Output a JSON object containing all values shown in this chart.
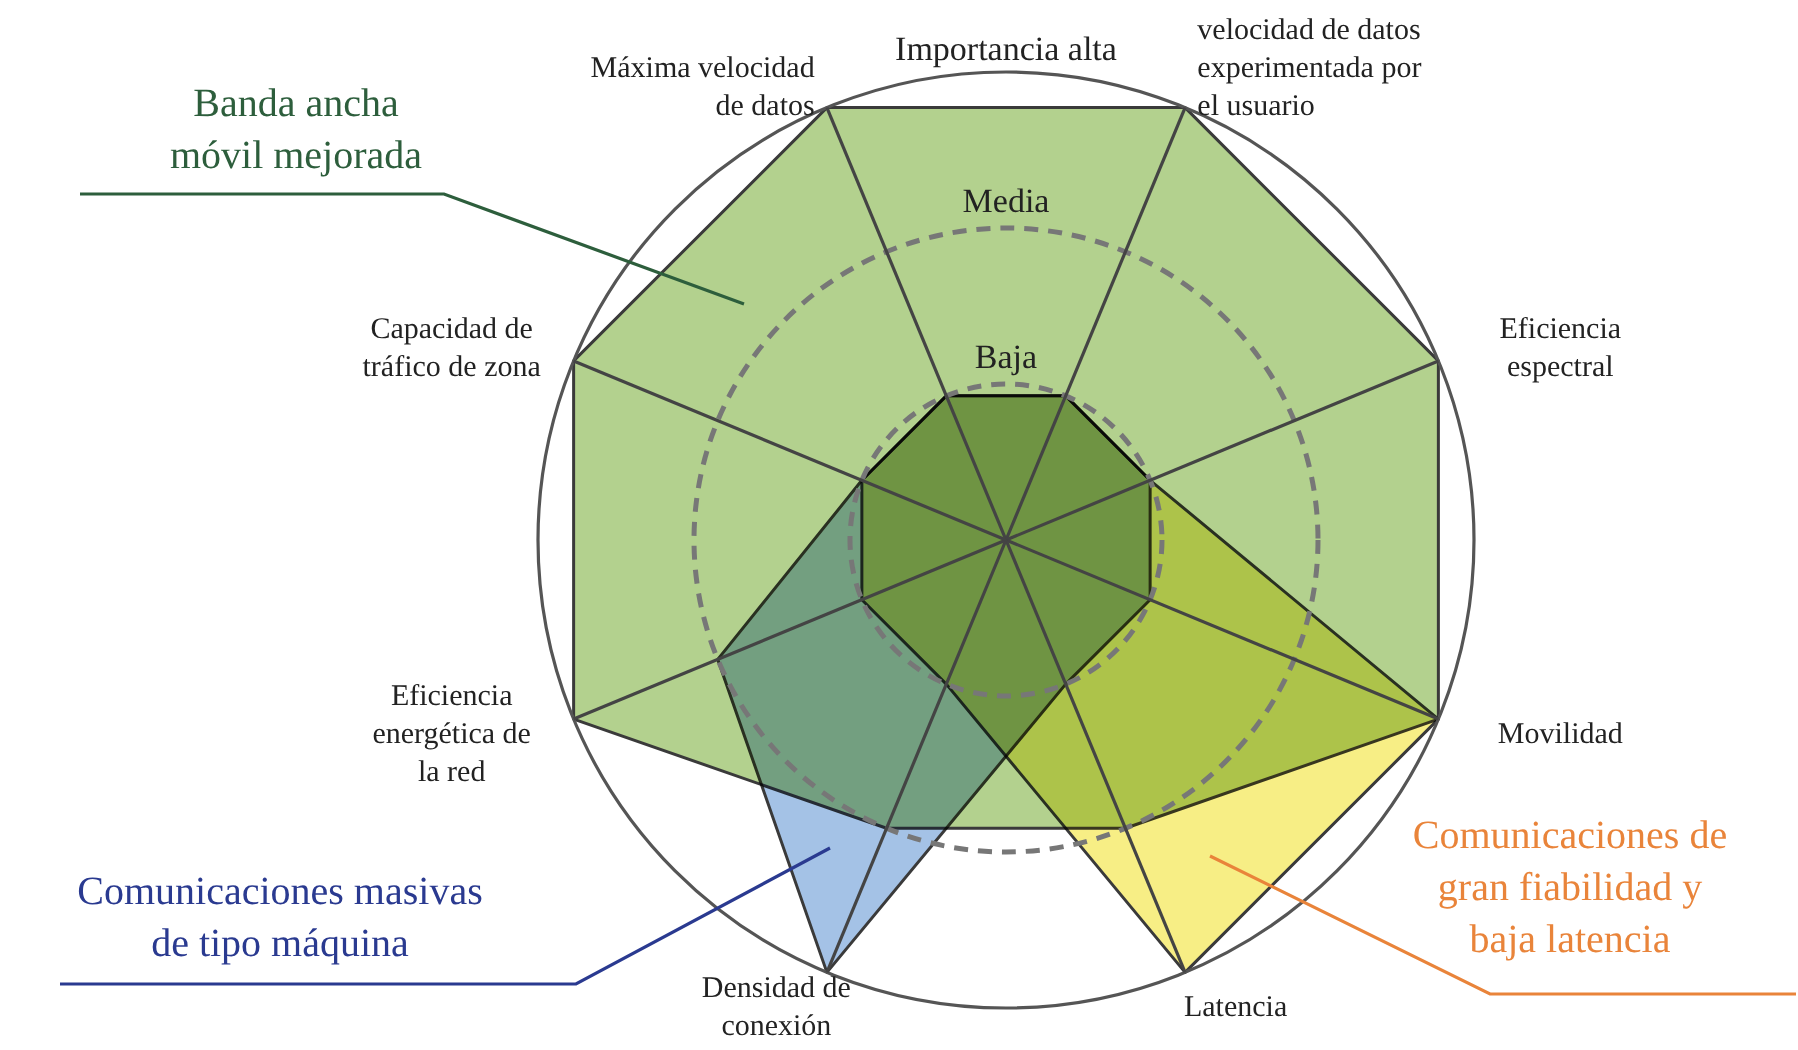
{
  "chart_data": {
    "type": "radar",
    "categories": [
      "Máxima velocidad de datos",
      "velocidad de datos experimentada por el usuario",
      "Eficiencia espectral",
      "Movilidad",
      "Latencia",
      "Densidad de conexión",
      "Eficiencia energética de la red",
      "Capacidad de tráfico de zona"
    ],
    "series": [
      {
        "name": "Banda ancha móvil mejorada",
        "color": "#b3d18e",
        "values": [
          3,
          3,
          3,
          3,
          2,
          2,
          3,
          3
        ]
      },
      {
        "name": "Comunicaciones masivas de tipo máquina",
        "color": "#a4c2e6",
        "values": [
          1,
          1,
          1,
          1,
          1,
          3,
          2,
          1
        ]
      },
      {
        "name": "Comunicaciones de gran fiabilidad y baja latencia",
        "color": "#f7ee85",
        "values": [
          1,
          1,
          1,
          3,
          3,
          1,
          1,
          1
        ]
      }
    ],
    "ylim": [
      0,
      3
    ],
    "yticks": [
      {
        "value": 1,
        "label": "Baja"
      },
      {
        "value": 2,
        "label": "Media"
      },
      {
        "value": 3,
        "label": "Importancia alta"
      }
    ],
    "grid": true,
    "legend": false
  }
}
